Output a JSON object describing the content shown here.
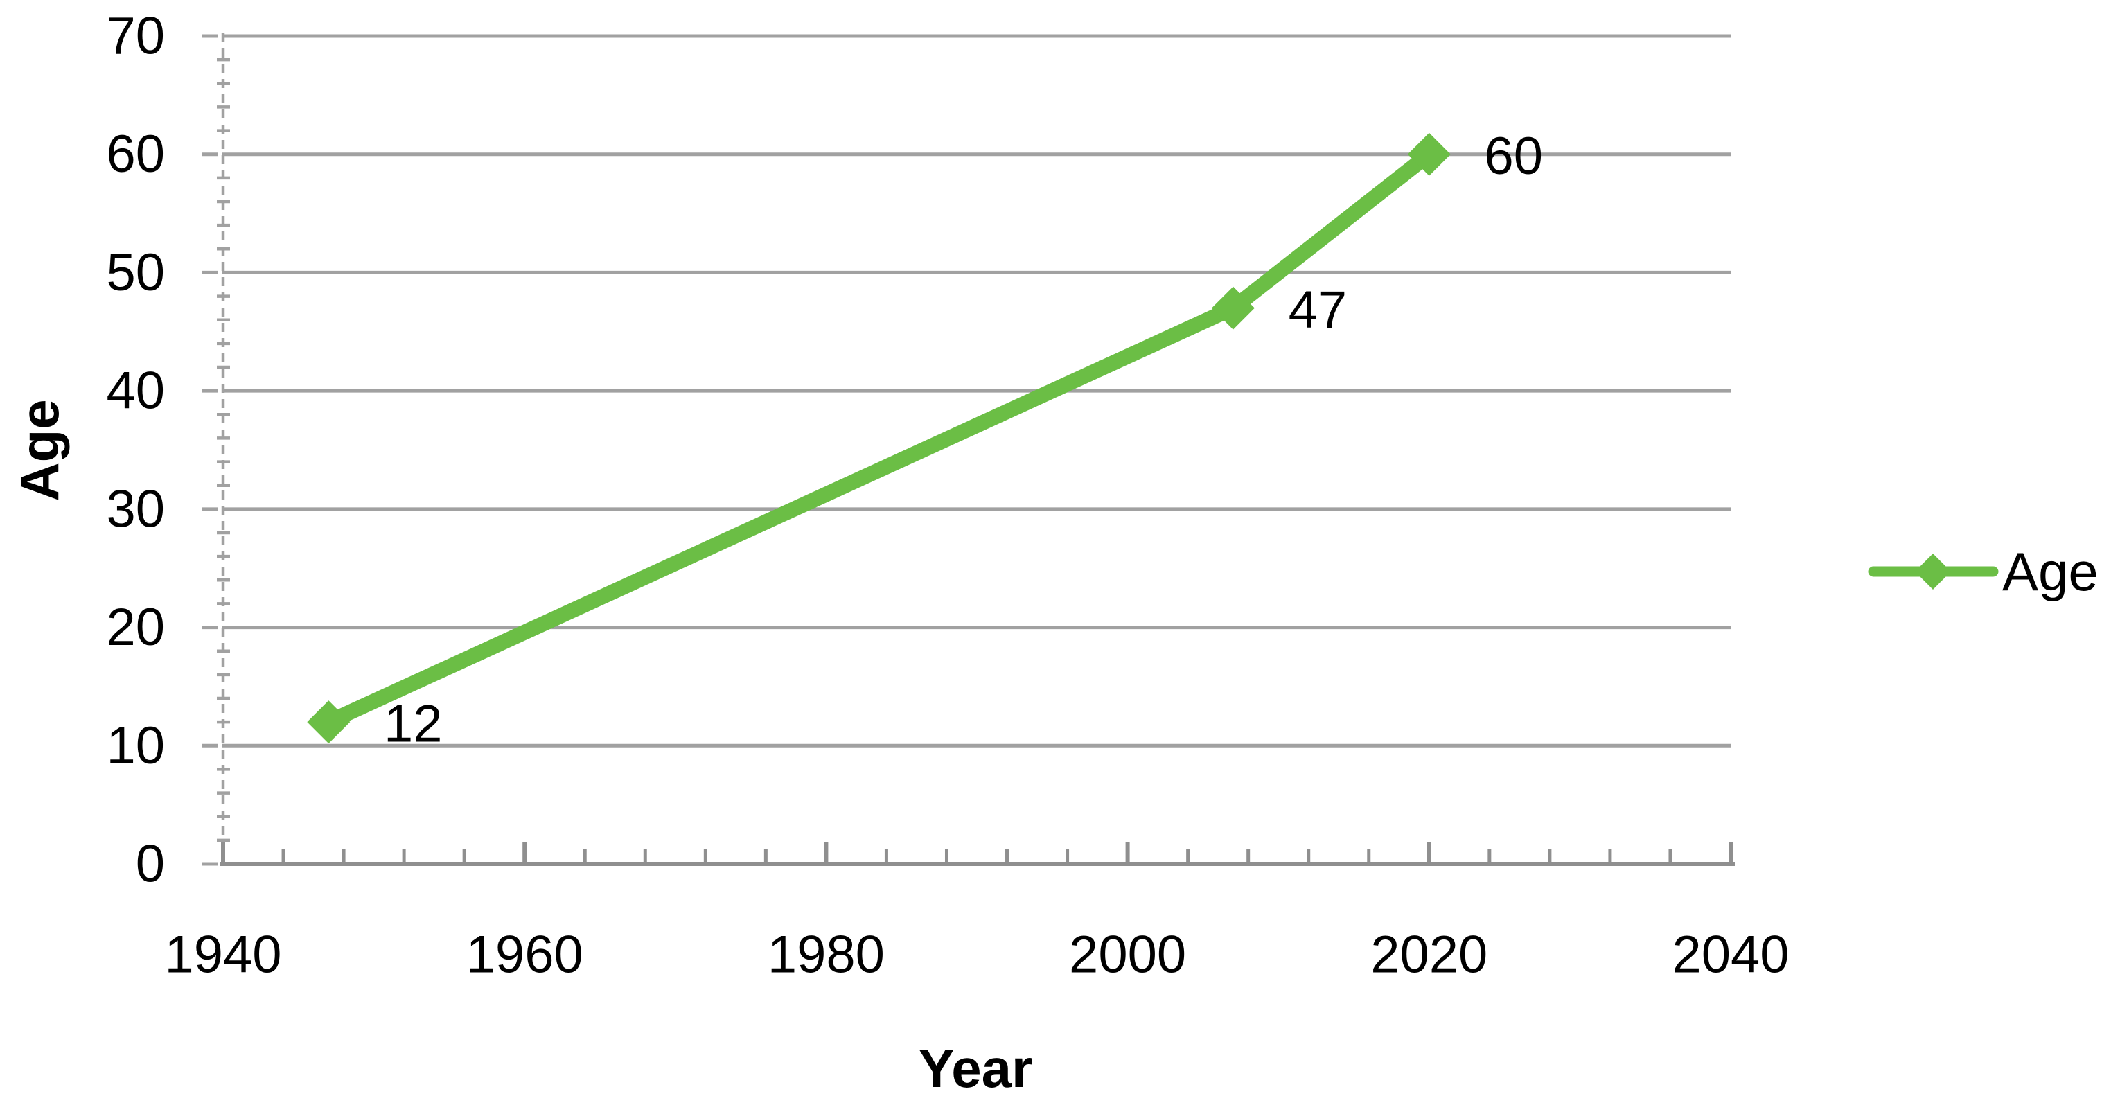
{
  "chart_data": {
    "type": "line",
    "title": "",
    "xlabel": "Year",
    "ylabel": "Age",
    "marker": "diamond",
    "series": [
      {
        "name": "Age",
        "color": "#6bbe45",
        "x": [
          1947,
          2007,
          2020
        ],
        "values": [
          12,
          47,
          60
        ],
        "points": [
          {
            "x": 1947,
            "y": 12,
            "label": "12"
          },
          {
            "x": 2007,
            "y": 47,
            "label": "47"
          },
          {
            "x": 2020,
            "y": 60,
            "label": "60"
          }
        ]
      }
    ],
    "x_axis": {
      "min": 1940,
      "max": 2040,
      "major_step": 20,
      "minor_step": 4,
      "tick_labels": [
        "1940",
        "1960",
        "1980",
        "2000",
        "2020",
        "2040"
      ]
    },
    "y_axis": {
      "min": 0,
      "max": 70,
      "major_step": 10,
      "minor_step": 2,
      "tick_labels": [
        "0",
        "10",
        "20",
        "30",
        "40",
        "50",
        "60",
        "70"
      ]
    },
    "grid": {
      "show_major_y": true,
      "show_major_x": false,
      "color": "#a1a1a1"
    },
    "axis_color": "#8f8f8f",
    "text_color": "#000000",
    "background_color": "#ffffff",
    "legend": {
      "position": "right",
      "entries": [
        "Age"
      ]
    }
  }
}
